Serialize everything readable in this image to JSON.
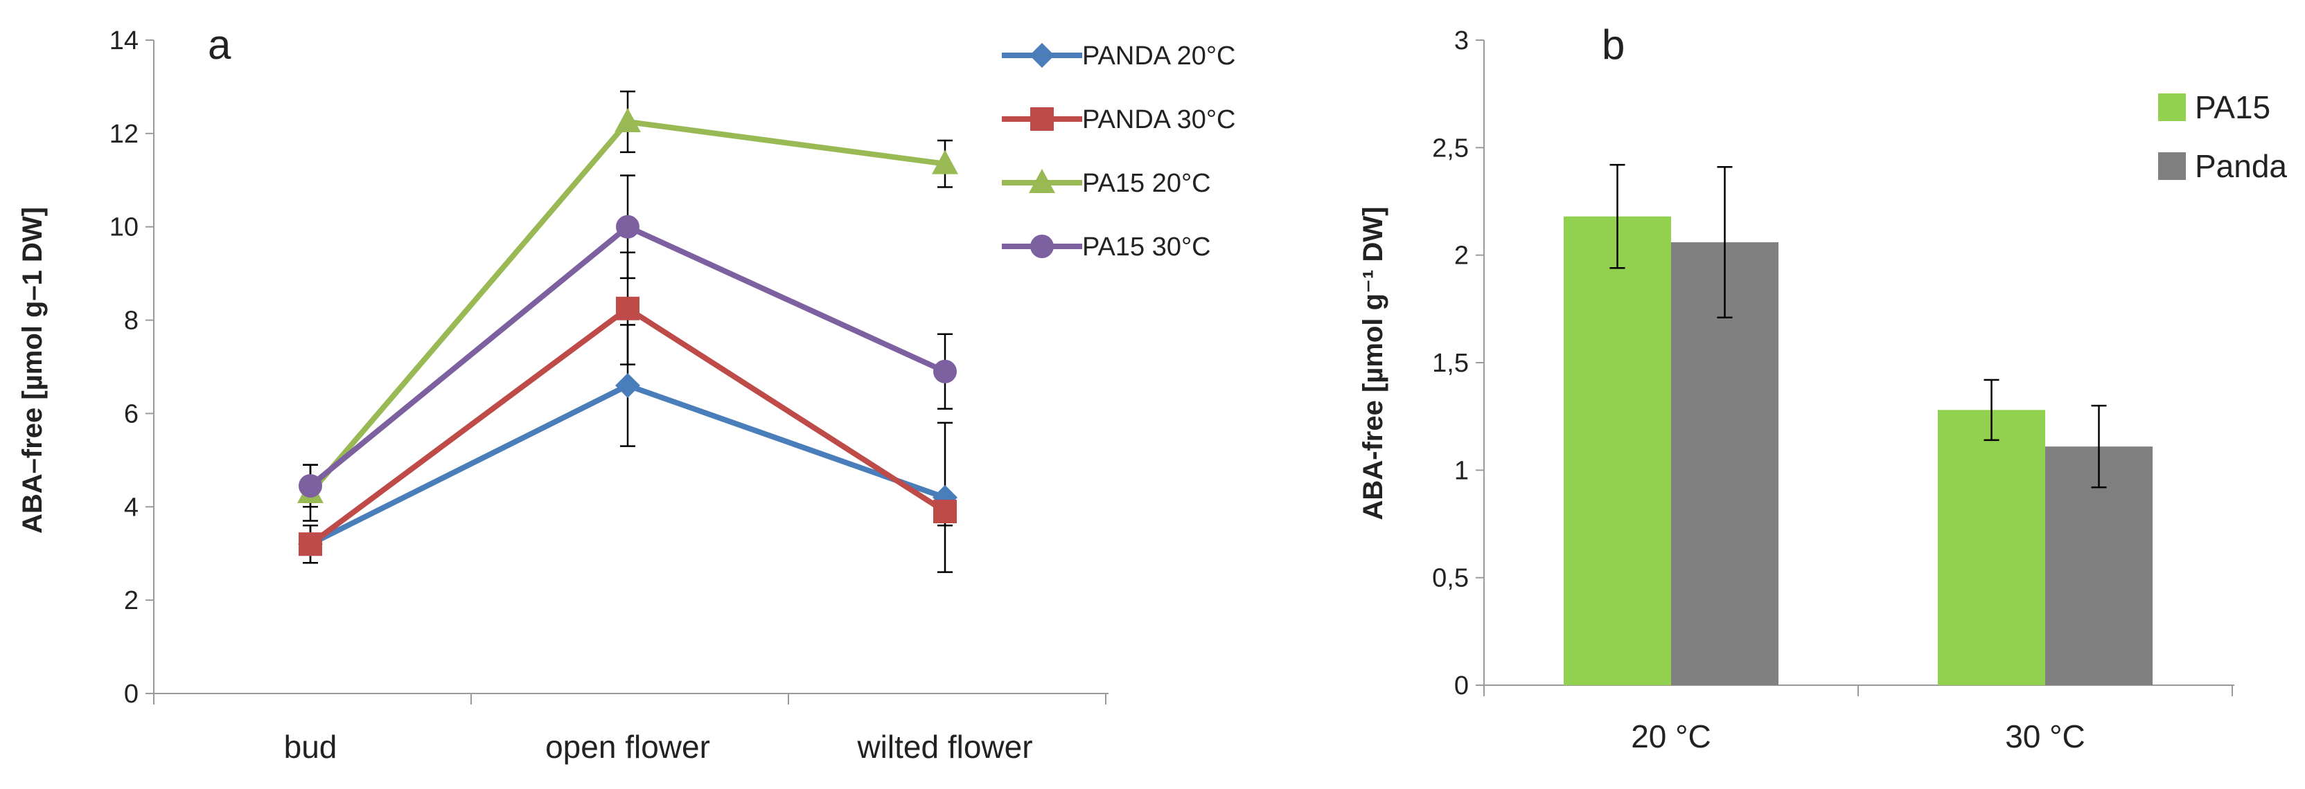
{
  "chart_data": [
    {
      "type": "line",
      "panel_label": "a",
      "ylabel": "ABA–free [µmol g–1 DW]",
      "categories": [
        "bud",
        "open flower",
        "wilted flower"
      ],
      "ylim": [
        0,
        14
      ],
      "yticks": [
        "0",
        "2",
        "4",
        "6",
        "8",
        "10",
        "12",
        "14"
      ],
      "legend_position": "top-right",
      "series": [
        {
          "name": "PANDA 20°C",
          "values": [
            3.2,
            6.6,
            4.2
          ],
          "errors": [
            0.4,
            1.3,
            1.6
          ],
          "color": "#4a7ebb",
          "marker": "diamond"
        },
        {
          "name": "PANDA 30°C",
          "values": [
            3.2,
            8.25,
            3.9
          ],
          "errors": [
            0.4,
            1.2,
            0.3
          ],
          "color": "#be4b48",
          "marker": "square"
        },
        {
          "name": "PA15 20°C",
          "values": [
            4.3,
            12.25,
            11.35
          ],
          "errors": [
            0.6,
            0.65,
            0.5
          ],
          "color": "#98b954",
          "marker": "triangle"
        },
        {
          "name": "PA15 30°C",
          "values": [
            4.45,
            10.0,
            6.9
          ],
          "errors": [
            0.45,
            1.1,
            0.8
          ],
          "color": "#7d60a0",
          "marker": "circle"
        }
      ]
    },
    {
      "type": "bar",
      "panel_label": "b",
      "ylabel": "ABA-free [µmol g⁻¹ DW]",
      "categories": [
        "20 °C",
        "30 °C"
      ],
      "ylim": [
        0,
        3
      ],
      "yticks": [
        "0",
        "0,5",
        "1",
        "1,5",
        "2",
        "2,5",
        "3"
      ],
      "legend_position": "top-right",
      "series": [
        {
          "name": "PA15",
          "values": [
            2.18,
            1.28
          ],
          "errors": [
            0.24,
            0.14
          ],
          "color": "#92d050"
        },
        {
          "name": "Panda",
          "values": [
            2.06,
            1.11
          ],
          "errors": [
            0.35,
            0.19
          ],
          "color": "#808080"
        }
      ]
    }
  ]
}
